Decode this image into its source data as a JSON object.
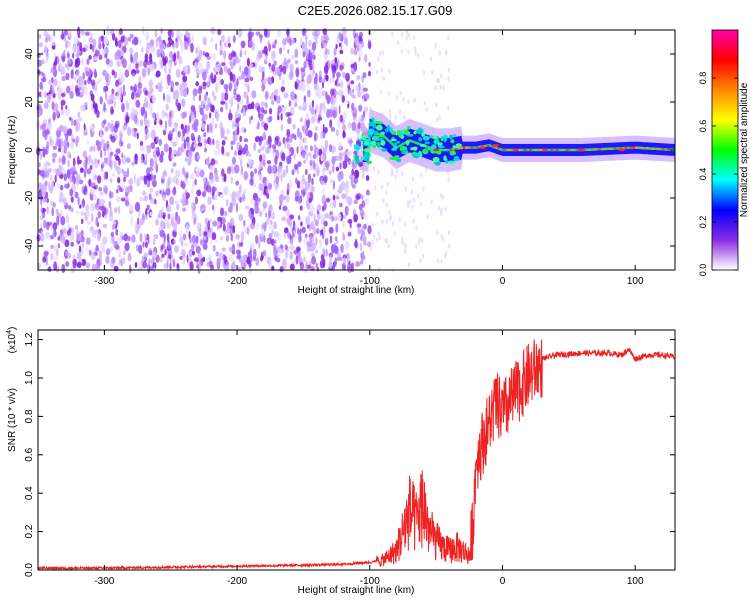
{
  "page": {
    "title": "C2E5.2026.082.15.17.G09"
  },
  "chart_data": [
    {
      "type": "heatmap",
      "title": "C2E5.2026.082.15.17.G09",
      "xlabel": "Height of straight line (km)",
      "ylabel": "Frequency (Hz)",
      "xlim": [
        -350,
        130
      ],
      "ylim": [
        -50,
        50
      ],
      "x_ticks": [
        -300,
        -200,
        -100,
        0,
        100
      ],
      "y_ticks": [
        -40,
        -20,
        0,
        20,
        40
      ],
      "colorbar": {
        "label": "Normalized spectral amplitude",
        "range": [
          0,
          1
        ],
        "ticks": [
          "0.0",
          "0.2",
          "0.4",
          "0.6",
          "0.8"
        ],
        "tick_values": [
          0.0,
          0.2,
          0.4,
          0.6,
          0.8
        ],
        "colors": [
          "#ffffff",
          "#8a2be2",
          "#0000ff",
          "#00ffff",
          "#00ff00",
          "#ffff00",
          "#ff8800",
          "#ff0000",
          "#ff00aa"
        ]
      },
      "features": {
        "noise_region_x": [
          -350,
          -100
        ],
        "signal_center_line": [
          {
            "x": -100,
            "y": 8
          },
          {
            "x": -90,
            "y": 6
          },
          {
            "x": -80,
            "y": 1
          },
          {
            "x": -70,
            "y": 4
          },
          {
            "x": -60,
            "y": 2
          },
          {
            "x": -50,
            "y": 0
          },
          {
            "x": -40,
            "y": 0
          },
          {
            "x": -30,
            "y": 1
          },
          {
            "x": -20,
            "y": 1
          },
          {
            "x": -10,
            "y": 2
          },
          {
            "x": 0,
            "y": 0
          },
          {
            "x": 20,
            "y": 0
          },
          {
            "x": 60,
            "y": 0
          },
          {
            "x": 100,
            "y": 1
          },
          {
            "x": 130,
            "y": 0
          }
        ]
      }
    },
    {
      "type": "line",
      "xlabel": "Height of straight line (km)",
      "ylabel": "SNR (10 * v/v)",
      "y_multiplier_label": "(x10",
      "y_multiplier_exp": "4",
      "xlim": [
        -350,
        130
      ],
      "ylim": [
        0,
        1.25
      ],
      "x_ticks": [
        -300,
        -200,
        -100,
        0,
        100
      ],
      "y_ticks": [
        0.0,
        0.2,
        0.4,
        0.6,
        0.8,
        1.0,
        1.2
      ],
      "y_tick_labels": [
        "0.0",
        "0.2",
        "0.4",
        "0.6",
        "0.8",
        "1.0",
        "1.2"
      ],
      "color": "#ee2222",
      "series": [
        {
          "x": [
            -350,
            -300,
            -250,
            -200,
            -150,
            -120,
            -100,
            -90,
            -80,
            -75,
            -70,
            -65,
            -60,
            -55,
            -50,
            -45,
            -40,
            -35,
            -30,
            -25,
            -22,
            -20,
            -15,
            -10,
            -5,
            0,
            5,
            10,
            15,
            20,
            25,
            30,
            40,
            60,
            80,
            90,
            95,
            100,
            110,
            120,
            130
          ],
          "y": [
            0.01,
            0.01,
            0.015,
            0.02,
            0.025,
            0.03,
            0.04,
            0.05,
            0.1,
            0.2,
            0.3,
            0.25,
            0.35,
            0.2,
            0.15,
            0.12,
            0.1,
            0.12,
            0.1,
            0.08,
            0.3,
            0.6,
            0.7,
            0.8,
            0.9,
            0.85,
            0.9,
            0.95,
            1.0,
            1.05,
            1.08,
            1.1,
            1.12,
            1.13,
            1.13,
            1.12,
            1.15,
            1.1,
            1.12,
            1.12,
            1.11
          ]
        }
      ]
    }
  ]
}
